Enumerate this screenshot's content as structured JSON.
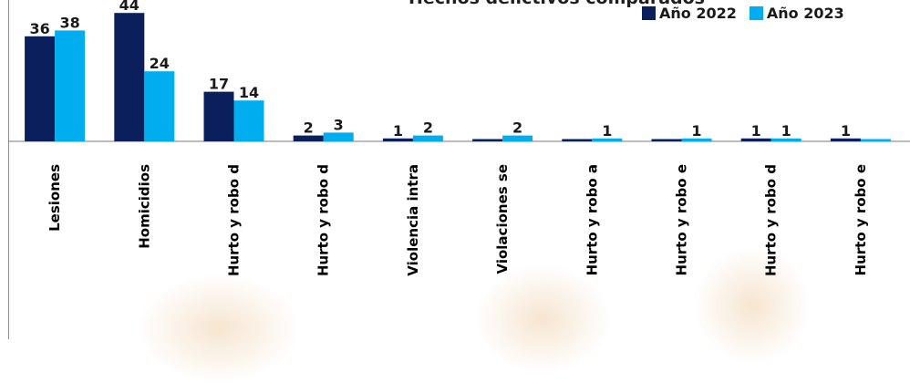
{
  "chart_data": {
    "type": "bar",
    "title": "Hechos delictivos comparados",
    "categories": [
      "Lesiones",
      "Homicidios",
      "Hurto y robo d",
      "Hurto y robo d",
      "Violencia intra",
      "Violaciones se",
      "Hurto y robo a",
      "Hurto y robo e",
      "Hurto y robo d",
      "Hurto y robo e"
    ],
    "series": [
      {
        "name": "Año 2022",
        "color": "#0b1f5c",
        "values": [
          36,
          44,
          17,
          2,
          1,
          0,
          0,
          0,
          1,
          1
        ]
      },
      {
        "name": "Año 2023",
        "color": "#00aeef",
        "values": [
          38,
          24,
          14,
          3,
          2,
          2,
          1,
          1,
          1,
          0
        ]
      }
    ],
    "data_labels": [
      [
        "36",
        "44",
        "17",
        "2",
        "1",
        "",
        "",
        "",
        "1",
        "1"
      ],
      [
        "38",
        "24",
        "14",
        "3",
        "2",
        "2",
        "1",
        "1",
        "1",
        ""
      ]
    ],
    "ylim": [
      0,
      44
    ],
    "grid": false,
    "legend_position": "top-right"
  }
}
